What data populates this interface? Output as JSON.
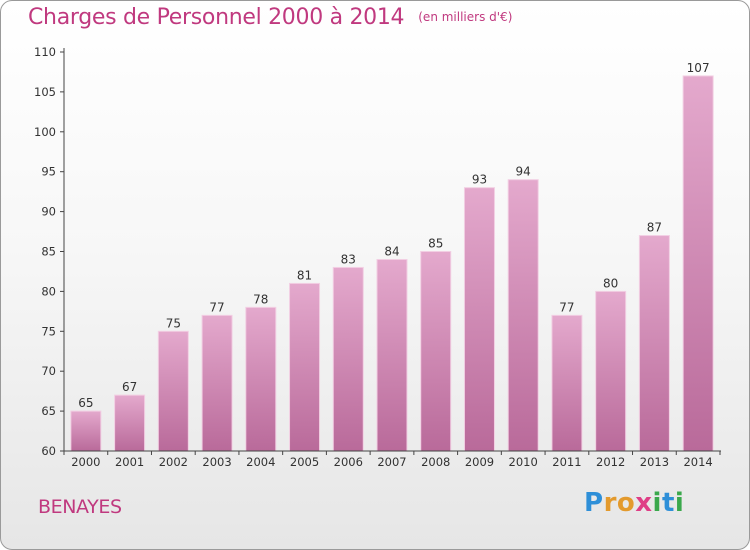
{
  "title": "Charges de Personnel 2000 à 2014",
  "subtitle": "(en milliers d'€)",
  "commune": "BENAYES",
  "logo": {
    "letters": [
      "P",
      "r",
      "o",
      "x",
      "i",
      "t",
      "i"
    ],
    "colors": [
      "#2e8fd8",
      "#e39a2d",
      "#e39a2d",
      "#df3e86",
      "#3aa84c",
      "#2e8fd8",
      "#3aa84c"
    ]
  },
  "colors": {
    "title": "#c0397f",
    "bar_top": "#e4a9cd",
    "bar_bottom": "#b96a9a",
    "bar_edge": "#f2cfe3",
    "axis": "#444444"
  },
  "chart_data": {
    "type": "bar",
    "categories": [
      "2000",
      "2001",
      "2002",
      "2003",
      "2004",
      "2005",
      "2006",
      "2007",
      "2008",
      "2009",
      "2010",
      "2011",
      "2012",
      "2013",
      "2014"
    ],
    "values": [
      65,
      67,
      75,
      77,
      78,
      81,
      83,
      84,
      85,
      93,
      94,
      77,
      80,
      87,
      107
    ],
    "ylim": [
      60,
      110
    ],
    "yticks": [
      60,
      65,
      70,
      75,
      80,
      85,
      90,
      95,
      100,
      105,
      110
    ],
    "grid": false,
    "legend": "none",
    "data_labels": true
  }
}
